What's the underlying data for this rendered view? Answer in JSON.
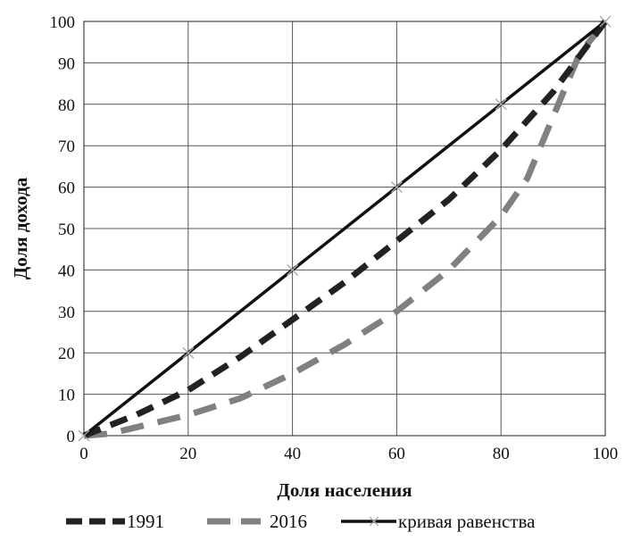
{
  "chart_data": {
    "type": "line",
    "xlabel": "Доля населения",
    "ylabel": "Доля дохода",
    "xlim": [
      0,
      100
    ],
    "ylim": [
      0,
      100
    ],
    "x_ticks": [
      0,
      20,
      40,
      60,
      80,
      100
    ],
    "y_ticks": [
      0,
      10,
      20,
      30,
      40,
      50,
      60,
      70,
      80,
      90,
      100
    ],
    "grid": true,
    "legend_position": "bottom",
    "series": [
      {
        "name": "1991",
        "color": "#222222",
        "style": "dashed",
        "points": [
          [
            0,
            0
          ],
          [
            10,
            5
          ],
          [
            20,
            11
          ],
          [
            30,
            19
          ],
          [
            40,
            28
          ],
          [
            50,
            37
          ],
          [
            60,
            47
          ],
          [
            70,
            57
          ],
          [
            80,
            69
          ],
          [
            90,
            83
          ],
          [
            100,
            100
          ]
        ]
      },
      {
        "name": "2016",
        "color": "#808080",
        "style": "dashed",
        "points": [
          [
            0,
            0
          ],
          [
            5,
            0.5
          ],
          [
            10,
            2
          ],
          [
            20,
            5
          ],
          [
            30,
            9
          ],
          [
            40,
            15
          ],
          [
            50,
            22
          ],
          [
            60,
            30
          ],
          [
            70,
            40
          ],
          [
            80,
            53
          ],
          [
            85,
            62
          ],
          [
            90,
            77
          ],
          [
            95,
            92
          ],
          [
            100,
            100
          ]
        ]
      },
      {
        "name": "кривая равенства",
        "color": "#111111",
        "style": "solid",
        "marker": "x",
        "points": [
          [
            0,
            0
          ],
          [
            20,
            20
          ],
          [
            40,
            40
          ],
          [
            60,
            60
          ],
          [
            80,
            80
          ],
          [
            100,
            100
          ]
        ]
      }
    ]
  }
}
